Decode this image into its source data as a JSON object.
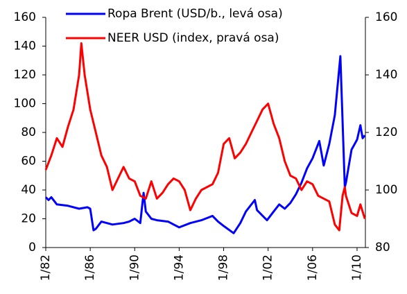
{
  "chart_data": {
    "type": "line",
    "xlim": [
      1982,
      2010.75
    ],
    "xticks": [
      {
        "value": 1982,
        "label": "1/82"
      },
      {
        "value": 1986,
        "label": "1/86"
      },
      {
        "value": 1990,
        "label": "1/90"
      },
      {
        "value": 1994,
        "label": "1/94"
      },
      {
        "value": 1998,
        "label": "1/98"
      },
      {
        "value": 2002,
        "label": "1/02"
      },
      {
        "value": 2006,
        "label": "1/06"
      },
      {
        "value": 2010,
        "label": "1/10"
      }
    ],
    "ylim": [
      0,
      160
    ],
    "yticks": [
      0,
      20,
      40,
      60,
      80,
      100,
      120,
      140,
      160
    ],
    "y2lim": [
      80,
      160
    ],
    "y2ticks": [
      80,
      100,
      120,
      140,
      160
    ],
    "legend": "upper left",
    "series": [
      {
        "name": "Ropa Brent (USD/b., levá osa)",
        "color": "#0000ff",
        "axis": "y",
        "x": [
          1982,
          1982.25,
          1982.5,
          1983,
          1984,
          1985,
          1985.75,
          1986,
          1986.3,
          1986.5,
          1987,
          1988,
          1989,
          1989.5,
          1990,
          1990.5,
          1990.8,
          1991,
          1991.5,
          1992,
          1993,
          1994,
          1995,
          1996,
          1997,
          1997.5,
          1998,
          1998.9,
          1999.5,
          2000,
          2000.8,
          2001,
          2001.9,
          2002.5,
          2003,
          2003.5,
          2004,
          2004.5,
          2005,
          2005.5,
          2006,
          2006.6,
          2007,
          2007.5,
          2008,
          2008.5,
          2008.9,
          2009,
          2009.5,
          2010,
          2010.3,
          2010.5,
          2010.7
        ],
        "values": [
          35,
          33,
          35,
          30,
          29,
          27,
          28,
          27,
          12,
          13,
          18,
          16,
          17,
          18,
          20,
          17,
          38,
          25,
          20,
          19,
          18,
          14,
          17,
          19,
          22,
          18,
          15,
          10,
          17,
          25,
          33,
          26,
          19,
          25,
          30,
          27,
          31,
          37,
          45,
          55,
          62,
          74,
          57,
          72,
          92,
          133,
          42,
          45,
          68,
          75,
          85,
          76,
          78
        ]
      },
      {
        "name": "NEER USD (index, pravá osa)",
        "color": "#ff0000",
        "axis": "y2",
        "x": [
          1982,
          1982.5,
          1983,
          1983.5,
          1984,
          1984.5,
          1985,
          1985.2,
          1985.5,
          1986,
          1986.5,
          1987,
          1987.5,
          1988,
          1988.5,
          1989,
          1989.5,
          1990,
          1990.5,
          1991,
          1991.5,
          1992,
          1992.5,
          1993,
          1993.5,
          1994,
          1994.5,
          1995,
          1995.5,
          1996,
          1997,
          1997.5,
          1998,
          1998.5,
          1999,
          1999.5,
          2000,
          2000.5,
          2001,
          2001.5,
          2002,
          2002.5,
          2003,
          2003.5,
          2004,
          2004.5,
          2005,
          2005.5,
          2006,
          2006.5,
          2007,
          2007.5,
          2008,
          2008.4,
          2008.7,
          2008.9,
          2009,
          2009.5,
          2010,
          2010.3,
          2010.7
        ],
        "values": [
          107,
          112,
          118,
          115,
          122,
          128,
          140,
          151,
          140,
          128,
          120,
          112,
          108,
          100,
          104,
          108,
          104,
          103,
          98,
          97,
          103,
          97,
          99,
          102,
          104,
          103,
          100,
          93,
          97,
          100,
          102,
          106,
          116,
          118,
          111,
          113,
          116,
          120,
          124,
          128,
          130,
          123,
          118,
          110,
          105,
          104,
          100,
          103,
          102,
          98,
          97,
          96,
          88,
          86,
          98,
          101,
          98,
          92,
          91,
          95,
          90
        ]
      }
    ]
  }
}
